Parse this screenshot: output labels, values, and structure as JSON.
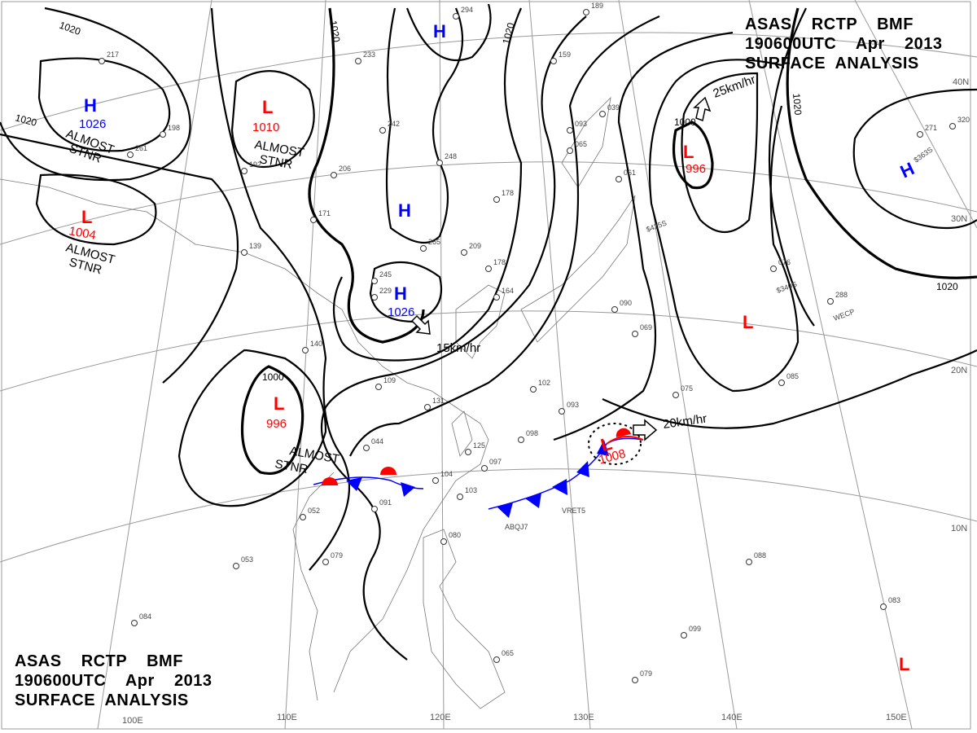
{
  "header": {
    "line1": "ASAS    RCTP    BMF",
    "line2": "190600UTC    Apr    2013",
    "line3": "SURFACE  ANALYSIS"
  },
  "footer": {
    "line1": "ASAS    RCTP    BMF",
    "line2": "190600UTC    Apr    2013",
    "line3": "SURFACE  ANALYSIS"
  },
  "colors": {
    "high": "#0000ff",
    "low": "#ff0000",
    "warm_front": "#ff0000",
    "cold_front": "#0000ff",
    "isobar": "#000000"
  },
  "pressure_centers": [
    {
      "type": "H",
      "value": "1026"
    },
    {
      "type": "L",
      "value": "1010"
    },
    {
      "type": "L",
      "value": "1004"
    },
    {
      "type": "H",
      "value": ""
    },
    {
      "type": "H",
      "value": ""
    },
    {
      "type": "H",
      "value": "1026"
    },
    {
      "type": "L",
      "value": "996"
    },
    {
      "type": "L",
      "value": "996"
    },
    {
      "type": "H",
      "value": ""
    },
    {
      "type": "L",
      "value": ""
    },
    {
      "type": "L",
      "value": "1008"
    },
    {
      "type": "L",
      "value": ""
    }
  ],
  "stationary_labels": [
    "ALMOST",
    "STNR"
  ],
  "isobar_labels": [
    "1020",
    "1020",
    "1020",
    "1020",
    "1020",
    "1020",
    "1000",
    "1000"
  ],
  "movement": [
    "25km/hr",
    "15km/hr",
    "20km/hr"
  ],
  "grid_labels": {
    "lon": [
      "100E",
      "110E",
      "120E",
      "130E",
      "140E",
      "150E"
    ],
    "lat": [
      "40N",
      "30N",
      "20N",
      "10N"
    ]
  },
  "stations": [
    "217",
    "261",
    "198",
    "192",
    "242",
    "233",
    "206",
    "171",
    "139",
    "140",
    "109",
    "131",
    "125",
    "097",
    "104",
    "103",
    "091",
    "079",
    "053",
    "084",
    "052",
    "044",
    "098",
    "093",
    "102",
    "075",
    "085",
    "088",
    "083",
    "099",
    "079",
    "080",
    "065",
    "178",
    "164",
    "209",
    "265",
    "245",
    "229",
    "159",
    "093",
    "065",
    "039",
    "061",
    "069",
    "090",
    "076",
    "288",
    "320",
    "271",
    "294",
    "189",
    "248",
    "178"
  ],
  "station_ids": [
    "VRET5",
    "ABQJ7",
    "WECP",
    "$425S",
    "$340S",
    "$363S"
  ]
}
